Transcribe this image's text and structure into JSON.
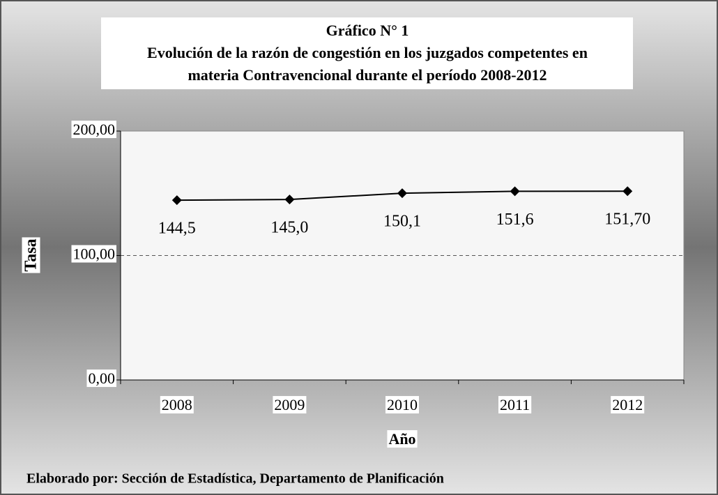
{
  "chart_data": {
    "type": "line",
    "title_lines": [
      "Gráfico N° 1",
      "Evolución de la razón de congestión en los juzgados competentes en",
      "materia Contravencional durante el período 2008-2012"
    ],
    "xlabel": "Año",
    "ylabel": "Tasa",
    "categories": [
      "2008",
      "2009",
      "2010",
      "2011",
      "2012"
    ],
    "values": [
      144.5,
      145.0,
      150.1,
      151.6,
      151.7
    ],
    "value_labels": [
      "144,5",
      "145,0",
      "150,1",
      "151,6",
      "151,70"
    ],
    "color": "#000000",
    "ylim": [
      0,
      200
    ],
    "yticks": [
      {
        "value": 0,
        "label": "0,00"
      },
      {
        "value": 100,
        "label": "100,00"
      },
      {
        "value": 200,
        "label": "200,00"
      }
    ],
    "grid": true,
    "footer": "Elaborado por: Sección de Estadística, Departamento de Planificación"
  }
}
